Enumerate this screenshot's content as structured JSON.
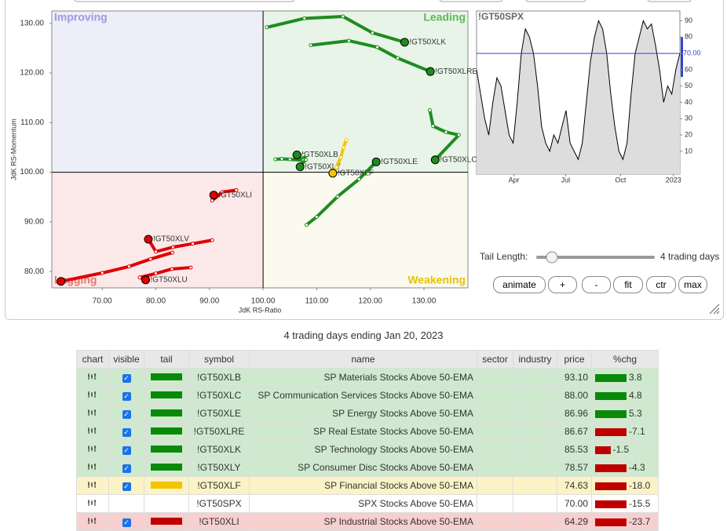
{
  "rrg": {
    "x_label": "JdK RS-Ratio",
    "y_label": "JdK RS-Momentum",
    "quadrants": {
      "improving": "Improving",
      "leading": "Leading",
      "lagging": "Lagging",
      "weakening": "Weakening"
    },
    "xlim": [
      60.6,
      138.2
    ],
    "ylim": [
      76.7,
      132.5
    ],
    "center": [
      100,
      100
    ],
    "xticks": [
      {
        "value": 70,
        "label": "70.00"
      },
      {
        "value": 80,
        "label": "80.00"
      },
      {
        "value": 90,
        "label": "90.00"
      },
      {
        "value": 100,
        "label": "100.00"
      },
      {
        "value": 110,
        "label": "110.00"
      },
      {
        "value": 120,
        "label": "120.00"
      },
      {
        "value": 130,
        "label": "130.00"
      }
    ],
    "yticks": [
      {
        "value": 80,
        "label": "80.00"
      },
      {
        "value": 90,
        "label": "90.00"
      },
      {
        "value": 100,
        "label": "100.00"
      },
      {
        "value": 110,
        "label": "110.00"
      },
      {
        "value": 120,
        "label": "120.00"
      },
      {
        "value": 130,
        "label": "130.00"
      }
    ],
    "series": [
      {
        "name": "!GT50XLK",
        "color": "#1e8c1e",
        "x": [
          100.7,
          107.7,
          114.9,
          120.4,
          126.4
        ],
        "y": [
          129.2,
          131,
          131.4,
          128.1,
          126.2
        ]
      },
      {
        "name": "!GT50XLRE",
        "color": "#1e8c1e",
        "x": [
          108.9,
          116,
          121.3,
          125.1,
          131.2
        ],
        "y": [
          125.6,
          126.5,
          125.2,
          123,
          120.3
        ]
      },
      {
        "name": "!GT50XLC",
        "color": "#1e8c1e",
        "x": [
          131.1,
          131.7,
          134.1,
          136.5,
          132.1
        ],
        "y": [
          112.5,
          109.3,
          108.1,
          107.5,
          102.5
        ]
      },
      {
        "name": "!GT50XLE",
        "color": "#1e8c1e",
        "x": [
          108.1,
          110,
          113.9,
          117.9,
          121.1
        ],
        "y": [
          89.4,
          91,
          95.1,
          98.6,
          102.1
        ]
      },
      {
        "name": "!GT50XLB",
        "color": "#1e8c1e",
        "x": [
          102.3,
          103.5,
          105,
          107.5,
          106.3
        ],
        "y": [
          102.6,
          102.7,
          102.6,
          102.4,
          103.5
        ]
      },
      {
        "name": "!GT50XLY",
        "color": "#1e8c1e",
        "x": [
          107.5,
          108,
          107,
          106.5,
          106.9
        ],
        "y": [
          103.5,
          102.5,
          101.5,
          101,
          101.1
        ]
      },
      {
        "name": "!GT50XLF",
        "color": "#f5c400",
        "x": [
          115.5,
          115,
          114.5,
          113.7,
          113
        ],
        "y": [
          106.5,
          105,
          103,
          101,
          99.8
        ]
      },
      {
        "name": "!GT50XLI",
        "color": "#e00000",
        "x": [
          95,
          92.4,
          90.5,
          90.9,
          90.8
        ],
        "y": [
          96.4,
          96,
          94.3,
          95,
          95.4
        ]
      },
      {
        "name": "!GT50XLV",
        "color": "#e00000",
        "x": [
          90.5,
          86.9,
          83.2,
          80,
          78.6
        ],
        "y": [
          86.3,
          85.6,
          84.9,
          84,
          86.5
        ]
      },
      {
        "name": "!GT50XLU",
        "color": "#e00000",
        "x": [
          86.5,
          83,
          80,
          77,
          78.1
        ],
        "y": [
          80.8,
          80.5,
          79.6,
          78.8,
          78.3
        ]
      },
      {
        "color": "#e00000",
        "x": [
          83.1,
          79,
          75,
          70,
          62.3
        ],
        "y": [
          83.8,
          82.5,
          81,
          79.7,
          78
        ]
      }
    ]
  },
  "mini": {
    "title": "!GT50SPX",
    "current_label": "70.00",
    "current": 70,
    "xlim": [
      0,
      50
    ],
    "ylim": [
      -4,
      96
    ],
    "yticks": [
      10,
      20,
      30,
      40,
      50,
      60,
      70,
      80,
      90
    ],
    "xticks": [
      {
        "value": 9.2,
        "label": "Apr"
      },
      {
        "value": 21.9,
        "label": "Jul"
      },
      {
        "value": 35.4,
        "label": "Oct"
      },
      {
        "value": 48.4,
        "label": "2023"
      }
    ],
    "values": [
      60,
      45,
      30,
      20,
      40,
      55,
      50,
      35,
      20,
      15,
      40,
      70,
      85,
      80,
      70,
      50,
      25,
      15,
      10,
      20,
      15,
      25,
      35,
      15,
      10,
      5,
      15,
      40,
      65,
      80,
      90,
      85,
      70,
      45,
      25,
      10,
      5,
      15,
      45,
      70,
      80,
      90,
      85,
      88,
      75,
      60,
      40,
      50,
      45,
      60,
      70
    ]
  },
  "controls": {
    "tail_label": "Tail Length:",
    "tail_value": "4 trading days",
    "buttons": [
      "animate",
      "+",
      "-",
      "fit",
      "ctr",
      "max"
    ]
  },
  "caption": "4 trading days ending Jan 20, 2023",
  "table": {
    "columns": [
      "chart",
      "visible",
      "tail",
      "symbol",
      "name",
      "sector",
      "industry",
      "price",
      "%chg"
    ],
    "rows": [
      {
        "status": "green",
        "visible": true,
        "tail": "#0a8a0a",
        "symbol": "!GT50XLB",
        "name": "SP Materials Stocks Above 50-EMA",
        "price": "93.10",
        "chg": "3.8"
      },
      {
        "status": "green",
        "visible": true,
        "tail": "#0a8a0a",
        "symbol": "!GT50XLC",
        "name": "SP Communication Services Stocks Above 50-EMA",
        "price": "88.00",
        "chg": "4.8"
      },
      {
        "status": "green",
        "visible": true,
        "tail": "#0a8a0a",
        "symbol": "!GT50XLE",
        "name": "SP Energy Stocks Above 50-EMA",
        "price": "86.96",
        "chg": "5.3"
      },
      {
        "status": "green",
        "visible": true,
        "tail": "#0a8a0a",
        "symbol": "!GT50XLRE",
        "name": "SP Real Estate Stocks Above 50-EMA",
        "price": "86.67",
        "chg": "-7.1"
      },
      {
        "status": "green",
        "visible": true,
        "tail": "#0a8a0a",
        "symbol": "!GT50XLK",
        "name": "SP Technology Stocks Above 50-EMA",
        "price": "85.53",
        "chg": "-1.5"
      },
      {
        "status": "green",
        "visible": true,
        "tail": "#0a8a0a",
        "symbol": "!GT50XLY",
        "name": "SP Consumer Disc Stocks Above 50-EMA",
        "price": "78.57",
        "chg": "-4.3"
      },
      {
        "status": "yellow",
        "visible": true,
        "tail": "#f5c400",
        "symbol": "!GT50XLF",
        "name": "SP Financial Stocks Above 50-EMA",
        "price": "74.63",
        "chg": "-18.0"
      },
      {
        "status": "white",
        "visible": false,
        "symbol": "!GT50SPX",
        "name": "SPX Stocks Above 50-EMA",
        "price": "70.00",
        "chg": "-15.5"
      },
      {
        "status": "red",
        "visible": true,
        "tail": "#c00000",
        "symbol": "!GT50XLI",
        "name": "SP Industrial Stocks Above 50-EMA",
        "price": "64.29",
        "chg": "-23.7"
      }
    ]
  }
}
